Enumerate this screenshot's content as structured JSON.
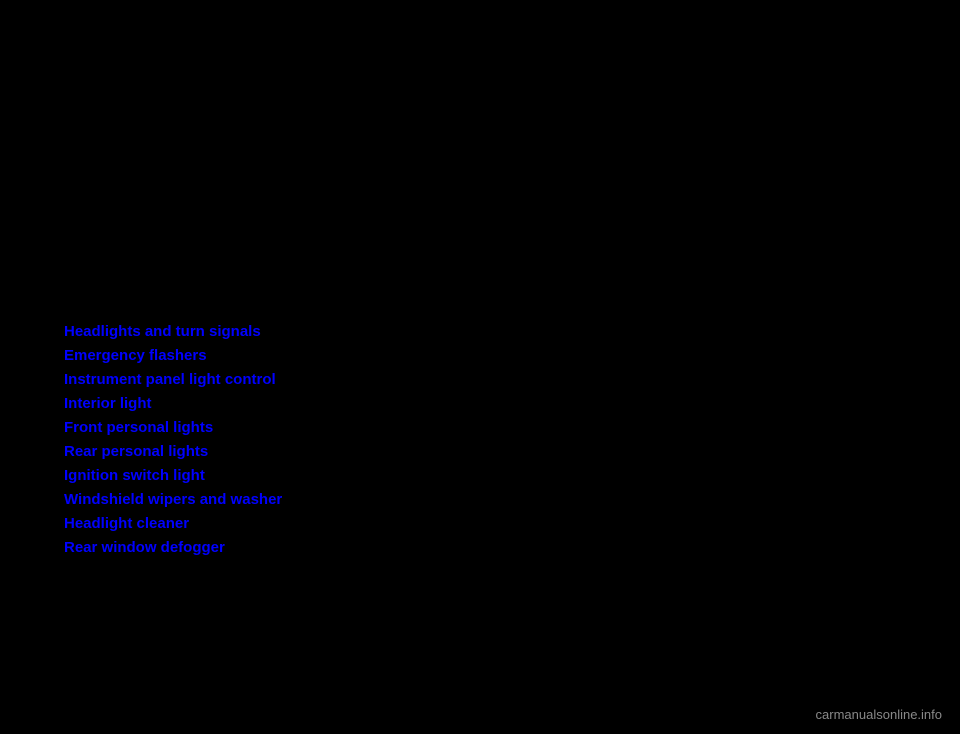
{
  "links": [
    "Headlights and turn signals",
    "Emergency flashers",
    "Instrument panel light control",
    "Interior light",
    "Front personal lights",
    "Rear personal lights",
    "Ignition switch light",
    "Windshield wipers and washer",
    "Headlight cleaner",
    "Rear window defogger"
  ],
  "watermark": "carmanualsonline.info",
  "style": {
    "background_color": "#000000",
    "link_color": "#0000FF",
    "watermark_color": "#888888",
    "link_fontsize": 15,
    "watermark_fontsize": 13
  }
}
